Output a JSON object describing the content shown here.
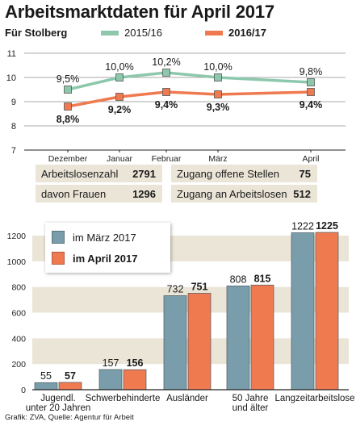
{
  "header": {
    "title": "Arbeitsmarktdaten für April 2017",
    "subtitle": "Für Stolberg"
  },
  "colors": {
    "green": "#8dc8ad",
    "orange": "#f07a50",
    "blue": "#7a9dab",
    "band": "#ebe5d8",
    "grid": "#a9a9a9"
  },
  "chart_data": [
    {
      "type": "line",
      "categories": [
        "Dezember",
        "Januar",
        "Februar",
        "März",
        "April"
      ],
      "series": [
        {
          "name": "2015/16",
          "values": [
            9.5,
            10.0,
            10.2,
            10.0,
            9.8
          ],
          "labels": [
            "9,5%",
            "10,0%",
            "10,2%",
            "10,0%",
            "9,8%"
          ]
        },
        {
          "name": "2016/17",
          "values": [
            8.8,
            9.2,
            9.4,
            9.3,
            9.4
          ],
          "labels": [
            "8,8%",
            "9,2%",
            "9,4%",
            "9,3%",
            "9,4%"
          ]
        }
      ],
      "yticks": [
        7,
        8,
        9,
        10,
        11
      ],
      "ylim": [
        7,
        11
      ],
      "legend": "top"
    },
    {
      "type": "bar",
      "categories": [
        "Jugendl. unter 20 Jahren",
        "Schwerbehinderte",
        "Ausländer",
        "50 Jahre und älter",
        "Langzeitarbeitslose"
      ],
      "category_lines": [
        [
          "Jugendl.",
          "unter 20 Jahren"
        ],
        [
          "Schwerbehinderte"
        ],
        [
          "Ausländer"
        ],
        [
          "50 Jahre",
          "und älter"
        ],
        [
          "Langzeitarbeitslose"
        ]
      ],
      "series": [
        {
          "name": "im März 2017",
          "values": [
            55,
            157,
            732,
            808,
            1222
          ]
        },
        {
          "name": "im April 2017",
          "values": [
            57,
            156,
            751,
            815,
            1225
          ]
        }
      ],
      "yticks": [
        0,
        200,
        400,
        600,
        800,
        1000,
        1200
      ],
      "ylim": [
        0,
        1200
      ],
      "legend": "top-left"
    }
  ],
  "stats": {
    "left": [
      {
        "label": "Arbeitslosenzahl",
        "value": "2791"
      },
      {
        "label": "davon Frauen",
        "value": "1296"
      }
    ],
    "right": [
      {
        "label": "Zugang offene Stellen",
        "value": "75"
      },
      {
        "label": "Zugang an Arbeitslosen",
        "value": "512"
      }
    ]
  },
  "source": "Grafik: ZVA, Quelle: Agentur für Arbeit"
}
